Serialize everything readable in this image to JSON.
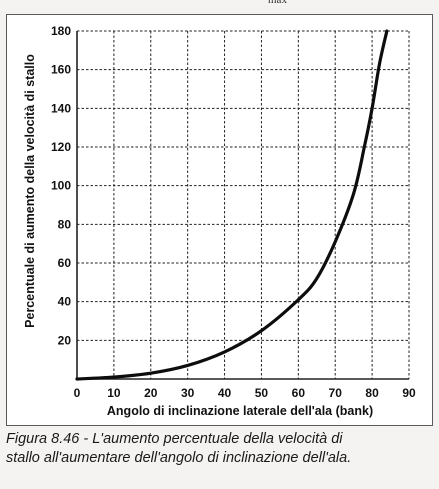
{
  "top_fragment": "max",
  "caption_line1": "Figura 8.46 - L'aumento percentuale della velocità di",
  "caption_line2": "stallo all'aumentare dell'angolo di inclinazione dell'ala.",
  "colors": {
    "curve": "#0d0d0d",
    "grid": "#222222",
    "background": "#ffffff"
  },
  "chart_data": {
    "type": "line",
    "title": "",
    "xlabel": "Angolo di inclinazione laterale dell'ala (bank)",
    "ylabel": "Percentuale di aumento della velocità di stallo",
    "xlim": [
      0,
      90
    ],
    "ylim": [
      0,
      180
    ],
    "xticks": [
      0,
      10,
      20,
      30,
      40,
      50,
      60,
      70,
      80,
      90
    ],
    "yticks": [
      20,
      40,
      60,
      80,
      100,
      120,
      140,
      160,
      180
    ],
    "grid": true,
    "x": [
      0,
      10,
      20,
      30,
      40,
      50,
      60,
      65,
      70,
      75,
      78,
      80,
      82,
      84
    ],
    "y": [
      0,
      1,
      3,
      7,
      14,
      25,
      41,
      52,
      71,
      96,
      121,
      140,
      163,
      180
    ]
  }
}
